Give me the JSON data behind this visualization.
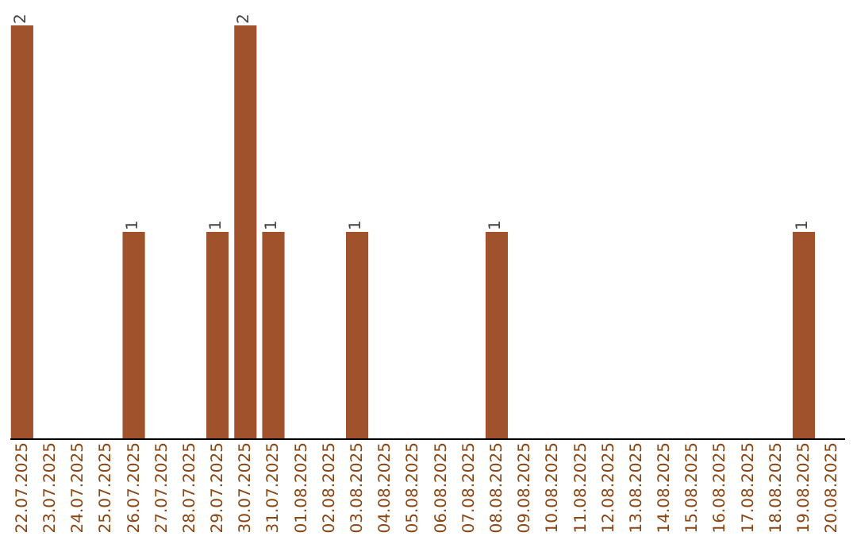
{
  "chart_data": {
    "type": "bar",
    "categories": [
      "22.07.2025",
      "23.07.2025",
      "24.07.2025",
      "25.07.2025",
      "26.07.2025",
      "27.07.2025",
      "28.07.2025",
      "29.07.2025",
      "30.07.2025",
      "31.07.2025",
      "01.08.2025",
      "02.08.2025",
      "03.08.2025",
      "04.08.2025",
      "05.08.2025",
      "06.08.2025",
      "07.08.2025",
      "08.08.2025",
      "09.08.2025",
      "10.08.2025",
      "11.08.2025",
      "12.08.2025",
      "13.08.2025",
      "14.08.2025",
      "15.08.2025",
      "16.08.2025",
      "17.08.2025",
      "18.08.2025",
      "19.08.2025",
      "20.08.2025"
    ],
    "values": [
      2,
      0,
      0,
      0,
      1,
      0,
      0,
      1,
      2,
      1,
      0,
      0,
      1,
      0,
      0,
      0,
      0,
      1,
      0,
      0,
      0,
      0,
      0,
      0,
      0,
      0,
      0,
      0,
      1,
      0
    ],
    "value_labels": [
      "2",
      null,
      null,
      null,
      "1",
      null,
      null,
      "1",
      "2",
      "1",
      null,
      null,
      "1",
      null,
      null,
      null,
      null,
      "1",
      null,
      null,
      null,
      null,
      null,
      null,
      null,
      null,
      null,
      null,
      "1",
      null
    ],
    "color": "#a0522d",
    "grid": false
  }
}
